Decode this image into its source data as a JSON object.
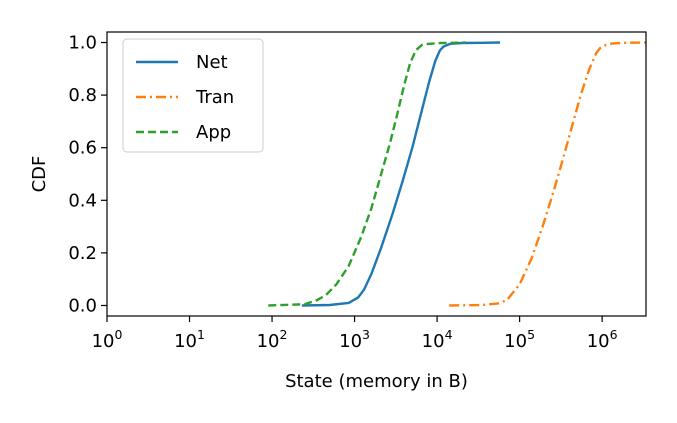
{
  "chart_data": {
    "type": "line",
    "xlabel": "State (memory in B)",
    "ylabel": "CDF",
    "x_scale": "log",
    "xlim": [
      1,
      3400000
    ],
    "ylim": [
      -0.04,
      1.04
    ],
    "grid": false,
    "legend_position": "top-left",
    "x_ticks": [
      {
        "value": 1,
        "base": "10",
        "exp": "0"
      },
      {
        "value": 10,
        "base": "10",
        "exp": "1"
      },
      {
        "value": 100,
        "base": "10",
        "exp": "2"
      },
      {
        "value": 1000,
        "base": "10",
        "exp": "3"
      },
      {
        "value": 10000,
        "base": "10",
        "exp": "4"
      },
      {
        "value": 100000,
        "base": "10",
        "exp": "5"
      },
      {
        "value": 1000000,
        "base": "10",
        "exp": "6"
      }
    ],
    "y_ticks": [
      {
        "value": 0.0,
        "label": "0.0"
      },
      {
        "value": 0.2,
        "label": "0.2"
      },
      {
        "value": 0.4,
        "label": "0.4"
      },
      {
        "value": 0.6,
        "label": "0.6"
      },
      {
        "value": 0.8,
        "label": "0.8"
      },
      {
        "value": 1.0,
        "label": "1.0"
      }
    ],
    "series": [
      {
        "name": "Net",
        "color": "#1f77b4",
        "dash": "solid",
        "x": [
          230,
          500,
          850,
          1100,
          1300,
          1600,
          2100,
          2900,
          3800,
          5000,
          6500,
          8000,
          9500,
          10800,
          12000,
          14500,
          20000,
          35000,
          58000
        ],
        "y": [
          0.0,
          0.002,
          0.01,
          0.03,
          0.06,
          0.12,
          0.22,
          0.35,
          0.47,
          0.6,
          0.74,
          0.85,
          0.93,
          0.97,
          0.985,
          0.995,
          0.998,
          0.999,
          1.0
        ]
      },
      {
        "name": "Tran",
        "color": "#ff7f0e",
        "dash": "dashdot",
        "x": [
          14000,
          35000,
          55000,
          70000,
          100000,
          140000,
          190000,
          250000,
          330000,
          430000,
          550000,
          700000,
          850000,
          950000,
          1100000,
          1300000,
          1800000,
          3400000
        ],
        "y": [
          0.0,
          0.002,
          0.008,
          0.02,
          0.08,
          0.18,
          0.3,
          0.42,
          0.55,
          0.68,
          0.8,
          0.9,
          0.96,
          0.98,
          0.99,
          0.996,
          0.999,
          1.0
        ]
      },
      {
        "name": "App",
        "color": "#2ca02c",
        "dash": "dashed",
        "x": [
          90,
          250,
          350,
          450,
          600,
          850,
          1200,
          1600,
          2100,
          2700,
          3300,
          4000,
          4700,
          5500,
          6500,
          8000,
          11000,
          15000,
          22000
        ],
        "y": [
          0.0,
          0.005,
          0.02,
          0.04,
          0.08,
          0.15,
          0.26,
          0.37,
          0.5,
          0.62,
          0.73,
          0.84,
          0.92,
          0.97,
          0.99,
          0.995,
          0.998,
          0.999,
          1.0
        ]
      }
    ]
  }
}
